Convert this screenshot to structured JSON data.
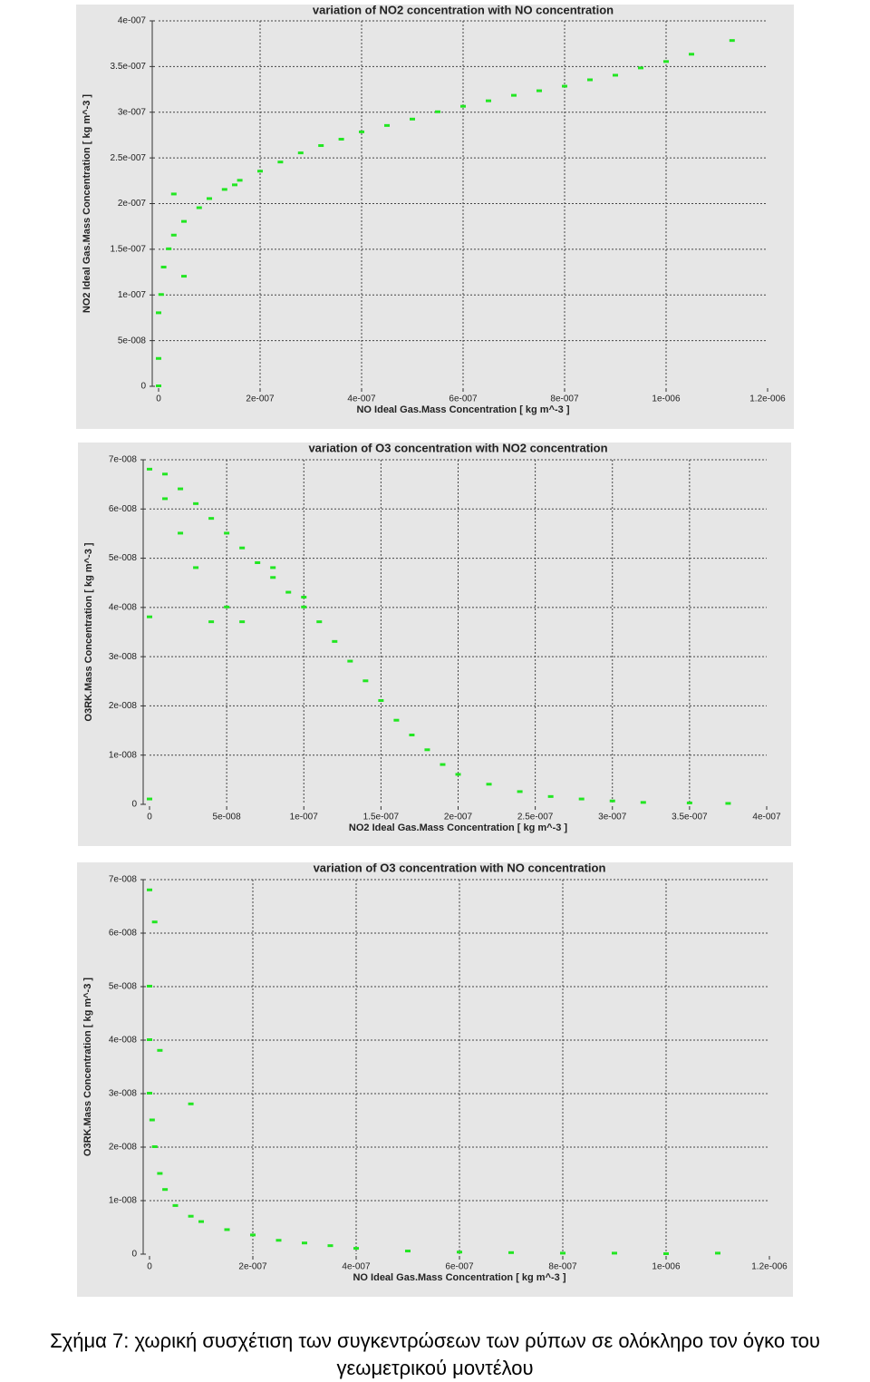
{
  "chart_data": [
    {
      "type": "scatter",
      "title": "variation of NO2 concentration with NO concentration",
      "xlabel": "NO Ideal Gas.Mass Concentration [ kg m^-3 ]",
      "ylabel": "NO2 Ideal Gas.Mass Concentration [ kg m^-3 ]",
      "color": "#22e622",
      "grid": true,
      "x": [
        0,
        0,
        0,
        5e-09,
        1e-08,
        2e-08,
        3e-08,
        5e-08,
        8e-08,
        1e-07,
        1.3e-07,
        1.6e-07,
        2e-07,
        2.4e-07,
        2.8e-07,
        3.2e-07,
        3.6e-07,
        4e-07,
        4.5e-07,
        5e-07,
        5.5e-07,
        6e-07,
        6.5e-07,
        7e-07,
        7.5e-07,
        8e-07,
        8.5e-07,
        9e-07,
        9.5e-07,
        1e-06,
        1.05e-06,
        1.13e-06,
        3e-08,
        1.5e-07,
        5e-08
      ],
      "values": [
        0,
        3e-08,
        8e-08,
        1e-07,
        1.3e-07,
        1.5e-07,
        1.65e-07,
        1.8e-07,
        1.95e-07,
        2.05e-07,
        2.15e-07,
        2.25e-07,
        2.35e-07,
        2.45e-07,
        2.55e-07,
        2.63e-07,
        2.7e-07,
        2.78e-07,
        2.85e-07,
        2.92e-07,
        3e-07,
        3.06e-07,
        3.12e-07,
        3.18e-07,
        3.23e-07,
        3.28e-07,
        3.35e-07,
        3.4e-07,
        3.48e-07,
        3.55e-07,
        3.63e-07,
        3.78e-07,
        2.1e-07,
        2.2e-07,
        1.2e-07
      ],
      "xlim": [
        0,
        1.2e-06
      ],
      "ylim": [
        0,
        4e-07
      ],
      "xticks": [
        0,
        {
          "value": 2e-07,
          "label": "2e-007"
        },
        {
          "value": 4e-07,
          "label": "4e-007"
        },
        {
          "value": 6e-07,
          "label": "6e-007"
        },
        {
          "value": 8e-07,
          "label": "8e-007"
        },
        {
          "value": 1e-06,
          "label": "1e-006"
        },
        {
          "value": 1.2e-06,
          "label": "1.2e-006"
        }
      ],
      "yticks": [
        0,
        {
          "value": 5e-08,
          "label": "5e-008"
        },
        {
          "value": 1e-07,
          "label": "1e-007"
        },
        {
          "value": 1.5e-07,
          "label": "1.5e-007"
        },
        {
          "value": 2e-07,
          "label": "2e-007"
        },
        {
          "value": 2.5e-07,
          "label": "2.5e-007"
        },
        {
          "value": 3e-07,
          "label": "3e-007"
        },
        {
          "value": 3.5e-07,
          "label": "3.5e-007"
        },
        {
          "value": 4e-07,
          "label": "4e-007"
        }
      ]
    },
    {
      "type": "scatter",
      "title": "variation of O3 concentration with NO2 concentration",
      "xlabel": "NO2 Ideal Gas.Mass Concentration [ kg m^-3 ]",
      "ylabel": "O3RK.Mass Concentration [ kg m^-3 ]",
      "color": "#22e622",
      "grid": true,
      "x": [
        0,
        0,
        0,
        1e-08,
        2e-08,
        3e-08,
        4e-08,
        5e-08,
        6e-08,
        7e-08,
        8e-08,
        9e-08,
        1e-07,
        1.1e-07,
        1.2e-07,
        1.3e-07,
        1.4e-07,
        1.5e-07,
        1.6e-07,
        1.7e-07,
        1.8e-07,
        1.9e-07,
        2e-07,
        2.2e-07,
        2.4e-07,
        2.6e-07,
        2.8e-07,
        3e-07,
        3.2e-07,
        3.5e-07,
        3.75e-07,
        1e-08,
        2e-08,
        3e-08,
        4e-08,
        5e-08,
        6e-08,
        8e-08,
        1e-07
      ],
      "values": [
        1e-09,
        3.8e-08,
        6.8e-08,
        6.7e-08,
        6.4e-08,
        6.1e-08,
        5.8e-08,
        5.5e-08,
        5.2e-08,
        4.9e-08,
        4.6e-08,
        4.3e-08,
        4e-08,
        3.7e-08,
        3.3e-08,
        2.9e-08,
        2.5e-08,
        2.1e-08,
        1.7e-08,
        1.4e-08,
        1.1e-08,
        8e-09,
        6e-09,
        4e-09,
        2.5e-09,
        1.5e-09,
        1e-09,
        6e-10,
        3e-10,
        2e-10,
        1e-10,
        6.2e-08,
        5.5e-08,
        4.8e-08,
        3.7e-08,
        4e-08,
        3.7e-08,
        4.8e-08,
        4.2e-08
      ],
      "xlim": [
        0,
        4e-07
      ],
      "ylim": [
        0,
        7e-08
      ],
      "xticks": [
        0,
        {
          "value": 5e-08,
          "label": "5e-008"
        },
        {
          "value": 1e-07,
          "label": "1e-007"
        },
        {
          "value": 1.5e-07,
          "label": "1.5e-007"
        },
        {
          "value": 2e-07,
          "label": "2e-007"
        },
        {
          "value": 2.5e-07,
          "label": "2.5e-007"
        },
        {
          "value": 3e-07,
          "label": "3e-007"
        },
        {
          "value": 3.5e-07,
          "label": "3.5e-007"
        },
        {
          "value": 4e-07,
          "label": "4e-007"
        }
      ],
      "yticks": [
        0,
        {
          "value": 1e-08,
          "label": "1e-008"
        },
        {
          "value": 2e-08,
          "label": "2e-008"
        },
        {
          "value": 3e-08,
          "label": "3e-008"
        },
        {
          "value": 4e-08,
          "label": "4e-008"
        },
        {
          "value": 5e-08,
          "label": "5e-008"
        },
        {
          "value": 6e-08,
          "label": "6e-008"
        },
        {
          "value": 7e-08,
          "label": "7e-008"
        }
      ]
    },
    {
      "type": "scatter",
      "title": "variation of O3 concentration with NO concentration",
      "xlabel": "NO Ideal Gas.Mass Concentration [ kg m^-3 ]",
      "ylabel": "O3RK.Mass Concentration [ kg m^-3 ]",
      "color": "#22e622",
      "grid": true,
      "x": [
        0,
        0,
        0,
        0,
        5e-09,
        1e-08,
        2e-08,
        3e-08,
        5e-08,
        8e-08,
        1e-07,
        1.5e-07,
        2e-07,
        2.5e-07,
        3e-07,
        3.5e-07,
        4e-07,
        5e-07,
        6e-07,
        7e-07,
        8e-07,
        9e-07,
        1e-06,
        1.1e-06,
        1e-08,
        2e-08,
        8e-08
      ],
      "values": [
        6.8e-08,
        5e-08,
        4e-08,
        3e-08,
        2.5e-08,
        2e-08,
        1.5e-08,
        1.2e-08,
        9e-09,
        7e-09,
        6e-09,
        4.5e-09,
        3.5e-09,
        2.5e-09,
        2e-09,
        1.5e-09,
        1e-09,
        5e-10,
        3e-10,
        2e-10,
        1e-10,
        1e-10,
        0,
        1e-10,
        6.2e-08,
        3.8e-08,
        2.8e-08
      ],
      "xlim": [
        0,
        1.2e-06
      ],
      "ylim": [
        0,
        7e-08
      ],
      "xticks": [
        0,
        {
          "value": 2e-07,
          "label": "2e-007"
        },
        {
          "value": 4e-07,
          "label": "4e-007"
        },
        {
          "value": 6e-07,
          "label": "6e-007"
        },
        {
          "value": 8e-07,
          "label": "8e-007"
        },
        {
          "value": 1e-06,
          "label": "1e-006"
        },
        {
          "value": 1.2e-06,
          "label": "1.2e-006"
        }
      ],
      "yticks": [
        0,
        {
          "value": 1e-08,
          "label": "1e-008"
        },
        {
          "value": 2e-08,
          "label": "2e-008"
        },
        {
          "value": 3e-08,
          "label": "3e-008"
        },
        {
          "value": 4e-08,
          "label": "4e-008"
        },
        {
          "value": 5e-08,
          "label": "5e-008"
        },
        {
          "value": 6e-08,
          "label": "6e-008"
        },
        {
          "value": 7e-08,
          "label": "7e-008"
        }
      ]
    }
  ],
  "caption": "Σχήμα 7: χωρική συσχέτιση των συγκεντρώσεων των ρύπων σε ολόκληρο τον όγκο του γεωμετρικού μοντέλου"
}
